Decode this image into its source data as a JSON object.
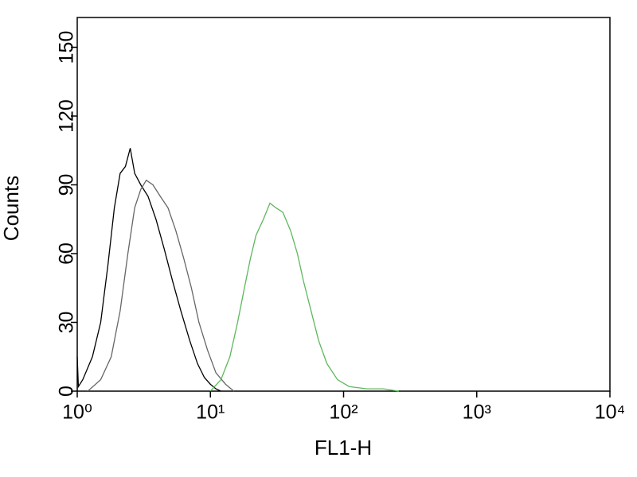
{
  "chart_data": {
    "type": "line",
    "x_label": "FL1-H",
    "y_label": "Counts",
    "x_scale": "log",
    "xlim": [
      1,
      10000
    ],
    "xticks": [
      {
        "value": 1,
        "label": "10⁰"
      },
      {
        "value": 10,
        "label": "10¹"
      },
      {
        "value": 100,
        "label": "10²"
      },
      {
        "value": 1000,
        "label": "10³"
      },
      {
        "value": 10000,
        "label": "10⁴"
      }
    ],
    "ylim": [
      0,
      163
    ],
    "yticks": [
      0,
      30,
      60,
      90,
      120,
      150
    ],
    "series": [
      {
        "color": "#000000",
        "x": [
          1,
          1.02,
          1.1,
          1.3,
          1.5,
          1.7,
          1.9,
          2.1,
          2.3,
          2.5,
          2.7,
          3.0,
          3.4,
          3.9,
          4.5,
          5.2,
          6,
          7,
          8,
          9,
          10,
          11,
          12
        ],
        "values": [
          15,
          2,
          5,
          15,
          30,
          55,
          80,
          95,
          98,
          106,
          95,
          90,
          85,
          75,
          62,
          48,
          35,
          22,
          12,
          6,
          3,
          1,
          0
        ]
      },
      {
        "color": "#666666",
        "x": [
          1.2,
          1.5,
          1.8,
          2.1,
          2.4,
          2.7,
          3.0,
          3.3,
          3.7,
          4.2,
          4.8,
          5.5,
          6.3,
          7.2,
          8.2,
          9.5,
          11,
          13,
          15
        ],
        "values": [
          0,
          5,
          15,
          35,
          60,
          80,
          88,
          92,
          90,
          85,
          80,
          70,
          58,
          45,
          30,
          18,
          8,
          3,
          0
        ]
      },
      {
        "color": "#5cb85c",
        "x": [
          10,
          12,
          14,
          16,
          18,
          20,
          22,
          25,
          28,
          31,
          35,
          40,
          45,
          50,
          57,
          65,
          75,
          90,
          110,
          150,
          200,
          260
        ],
        "values": [
          0,
          5,
          15,
          30,
          45,
          58,
          68,
          75,
          82,
          80,
          78,
          70,
          60,
          48,
          35,
          22,
          12,
          5,
          2,
          1,
          1,
          0
        ]
      }
    ]
  }
}
